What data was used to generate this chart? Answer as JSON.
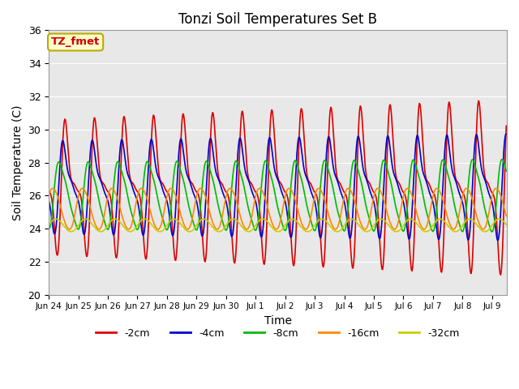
{
  "title": "Tonzi Soil Temperatures Set B",
  "xlabel": "Time",
  "ylabel": "Soil Temperature (C)",
  "ylim": [
    20,
    36
  ],
  "yticks": [
    20,
    22,
    24,
    26,
    28,
    30,
    32,
    34,
    36
  ],
  "annotation_text": "TZ_fmet",
  "annotation_bg": "#ffffcc",
  "annotation_border": "#bbaa00",
  "series": [
    {
      "label": "-2cm",
      "color": "#dd0000",
      "lw": 1.2
    },
    {
      "label": "-4cm",
      "color": "#0000cc",
      "lw": 1.2
    },
    {
      "label": "-8cm",
      "color": "#00bb00",
      "lw": 1.2
    },
    {
      "label": "-16cm",
      "color": "#ff8800",
      "lw": 1.2
    },
    {
      "label": "-32cm",
      "color": "#cccc00",
      "lw": 1.2
    }
  ],
  "bg_color": "#e8e8e8",
  "fig_bg": "#ffffff",
  "xtick_days": [
    0,
    1,
    2,
    3,
    4,
    5,
    6,
    7,
    8,
    9,
    10,
    11,
    12,
    13,
    14,
    15
  ],
  "xtick_labels": [
    "Jun 24",
    "Jun 25",
    "Jun 26",
    "Jun 27",
    "Jun 28",
    "Jun 29",
    "Jun 30",
    "Jul 1",
    "Jul 2",
    "Jul 3",
    "Jul 4",
    "Jul 5",
    "Jul 6",
    "Jul 7",
    "Jul 8",
    "Jul 9"
  ]
}
